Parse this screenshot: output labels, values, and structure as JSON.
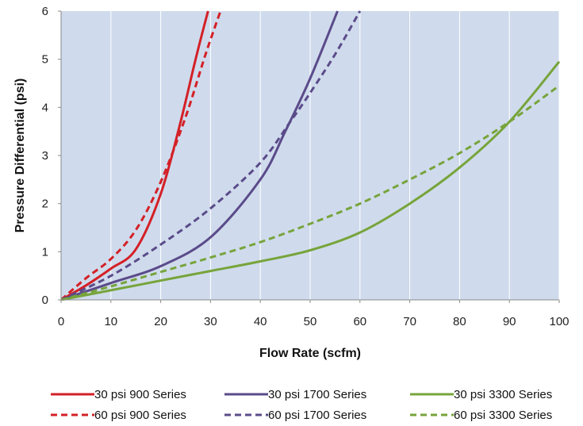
{
  "chart_data": {
    "type": "line",
    "xlabel": "Flow Rate (scfm)",
    "ylabel": "Pressure Differential (psi)",
    "xlim": [
      0,
      100
    ],
    "ylim": [
      0,
      6
    ],
    "x_ticks": [
      "0",
      "10",
      "20",
      "30",
      "40",
      "50",
      "60",
      "70",
      "80",
      "90",
      "100"
    ],
    "y_ticks": [
      "0",
      "1",
      "2",
      "3",
      "4",
      "5",
      "6"
    ],
    "grid": "vertical",
    "background_color": "#cfdbec",
    "legend_position": "bottom",
    "series": [
      {
        "name": "30 psi 900 Series",
        "color": "#d42027",
        "dash": "solid",
        "points": [
          [
            0,
            0
          ],
          [
            5,
            0.3
          ],
          [
            10,
            0.65
          ],
          [
            15,
            1.05
          ],
          [
            20,
            2.2
          ],
          [
            24,
            3.7
          ],
          [
            27,
            5.0
          ],
          [
            29.5,
            6.0
          ]
        ]
      },
      {
        "name": "60 psi 900 Series",
        "color": "#d42027",
        "dash": "dashed",
        "points": [
          [
            0,
            0
          ],
          [
            5,
            0.45
          ],
          [
            10,
            0.85
          ],
          [
            15,
            1.45
          ],
          [
            20,
            2.45
          ],
          [
            25,
            3.8
          ],
          [
            29,
            5.1
          ],
          [
            32,
            6.0
          ]
        ]
      },
      {
        "name": "30 psi 1700 Series",
        "color": "#5b4b8a",
        "dash": "solid",
        "points": [
          [
            0,
            0
          ],
          [
            10,
            0.35
          ],
          [
            20,
            0.7
          ],
          [
            30,
            1.3
          ],
          [
            40,
            2.5
          ],
          [
            45,
            3.5
          ],
          [
            50,
            4.6
          ],
          [
            55.5,
            6.0
          ]
        ]
      },
      {
        "name": "60 psi 1700 Series",
        "color": "#5b4b8a",
        "dash": "dashed",
        "points": [
          [
            0,
            0
          ],
          [
            10,
            0.5
          ],
          [
            20,
            1.15
          ],
          [
            30,
            1.9
          ],
          [
            40,
            2.85
          ],
          [
            46,
            3.7
          ],
          [
            50,
            4.3
          ],
          [
            55,
            5.1
          ],
          [
            60,
            6.0
          ]
        ]
      },
      {
        "name": "30 psi 3300 Series",
        "color": "#77a43b",
        "dash": "solid",
        "points": [
          [
            0,
            0
          ],
          [
            10,
            0.2
          ],
          [
            20,
            0.4
          ],
          [
            30,
            0.6
          ],
          [
            40,
            0.8
          ],
          [
            50,
            1.03
          ],
          [
            60,
            1.4
          ],
          [
            70,
            2.0
          ],
          [
            80,
            2.75
          ],
          [
            90,
            3.7
          ],
          [
            100,
            4.95
          ]
        ]
      },
      {
        "name": "60 psi 3300 Series",
        "color": "#77a43b",
        "dash": "dashed",
        "points": [
          [
            0,
            0
          ],
          [
            10,
            0.28
          ],
          [
            20,
            0.58
          ],
          [
            30,
            0.88
          ],
          [
            40,
            1.2
          ],
          [
            50,
            1.58
          ],
          [
            60,
            2.0
          ],
          [
            70,
            2.5
          ],
          [
            80,
            3.05
          ],
          [
            90,
            3.7
          ],
          [
            100,
            4.45
          ]
        ]
      }
    ]
  }
}
